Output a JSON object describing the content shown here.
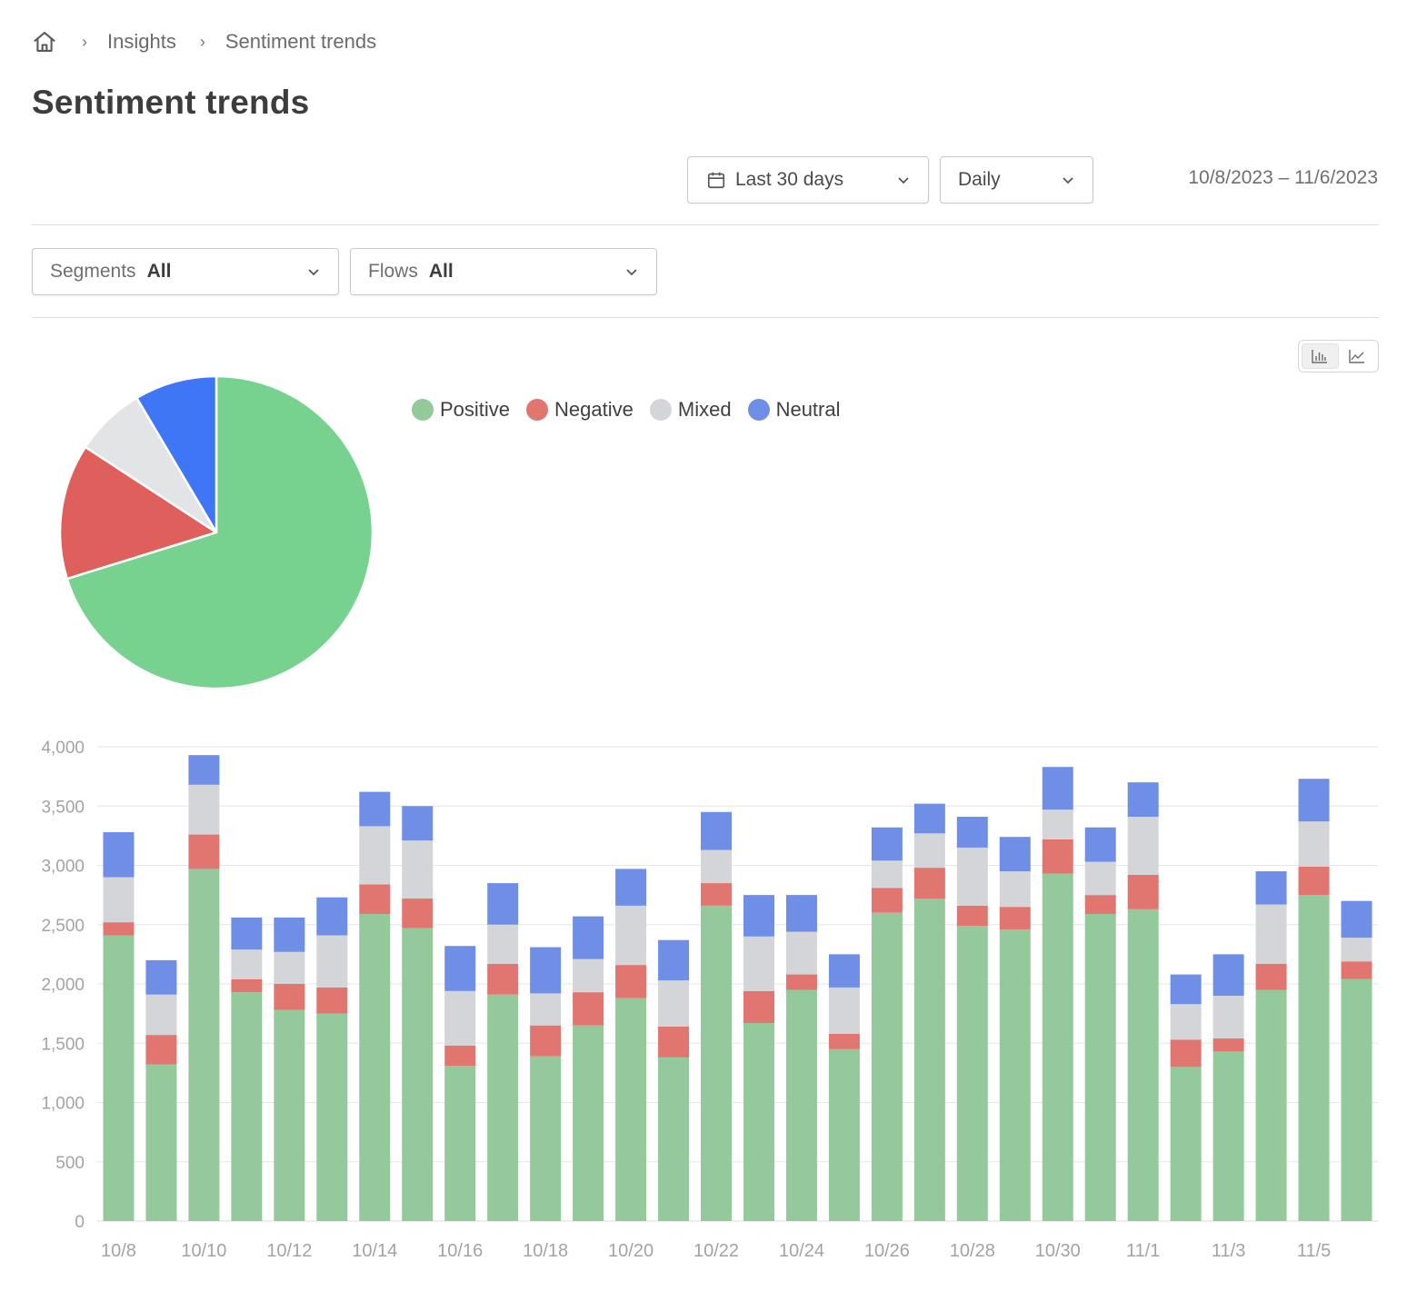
{
  "breadcrumb": {
    "home_icon": "home-icon",
    "items": [
      "Insights",
      "Sentiment trends"
    ]
  },
  "page_title": "Sentiment trends",
  "controls": {
    "period": {
      "icon": "calendar-icon",
      "value": "Last 30 days"
    },
    "granularity": {
      "value": "Daily"
    },
    "date_range": "10/8/2023 – 11/6/2023"
  },
  "filters": {
    "segments": {
      "label": "Segments",
      "value": "All"
    },
    "flows": {
      "label": "Flows",
      "value": "All"
    }
  },
  "view_toggle": {
    "options": [
      "bar-chart-icon",
      "line-chart-icon"
    ],
    "active": "bar-chart-icon"
  },
  "colors": {
    "positive": "#78d28f",
    "negative": "#de5f5b",
    "mixed": "#e2e4e6",
    "neutral": "#3e76f5",
    "bar_positive": "#93c99b",
    "bar_negative": "#e0766f",
    "bar_mixed": "#d3d5d8",
    "bar_neutral": "#6f8fe6"
  },
  "legend": [
    "Positive",
    "Negative",
    "Mixed",
    "Neutral"
  ],
  "chart_data": [
    {
      "type": "pie",
      "title": "",
      "labels": [
        "Positive",
        "Negative",
        "Mixed",
        "Neutral"
      ],
      "values": [
        70.2,
        14.0,
        7.3,
        8.5
      ]
    },
    {
      "type": "bar",
      "stacked": true,
      "title": "",
      "xlabel": "",
      "ylabel": "",
      "ylim": [
        0,
        4000
      ],
      "yticks": [
        "0",
        "500",
        "1,000",
        "1,500",
        "2,000",
        "2,500",
        "3,000",
        "3,500",
        "4,000"
      ],
      "ytick_values": [
        0,
        500,
        1000,
        1500,
        2000,
        2500,
        3000,
        3500,
        4000
      ],
      "categories": [
        "10/8",
        "10/9",
        "10/10",
        "10/11",
        "10/12",
        "10/13",
        "10/14",
        "10/15",
        "10/16",
        "10/17",
        "10/18",
        "10/19",
        "10/20",
        "10/21",
        "10/22",
        "10/23",
        "10/24",
        "10/25",
        "10/26",
        "10/27",
        "10/28",
        "10/29",
        "10/30",
        "10/31",
        "11/1",
        "11/2",
        "11/3",
        "11/4",
        "11/5",
        "11/6"
      ],
      "xtick_labels": [
        "10/8",
        "10/10",
        "10/12",
        "10/14",
        "10/16",
        "10/18",
        "10/20",
        "10/22",
        "10/24",
        "10/26",
        "10/28",
        "10/30",
        "11/1",
        "11/3",
        "11/5"
      ],
      "series": [
        {
          "name": "Positive",
          "values": [
            2410,
            1320,
            2970,
            1930,
            1780,
            1750,
            2590,
            2470,
            1310,
            1910,
            1390,
            1650,
            1880,
            1380,
            2660,
            1670,
            1950,
            1450,
            2600,
            2720,
            2490,
            2460,
            2930,
            2590,
            2630,
            1300,
            1430,
            1950,
            2750,
            2040
          ]
        },
        {
          "name": "Negative",
          "values": [
            110,
            250,
            290,
            110,
            220,
            220,
            250,
            250,
            170,
            260,
            260,
            280,
            280,
            260,
            190,
            270,
            130,
            130,
            210,
            260,
            170,
            190,
            290,
            160,
            290,
            230,
            110,
            220,
            240,
            150
          ]
        },
        {
          "name": "Mixed",
          "values": [
            380,
            340,
            420,
            250,
            270,
            440,
            490,
            490,
            460,
            330,
            270,
            280,
            500,
            390,
            280,
            460,
            360,
            390,
            230,
            290,
            490,
            300,
            250,
            280,
            490,
            300,
            360,
            500,
            380,
            200
          ]
        },
        {
          "name": "Neutral",
          "values": [
            380,
            290,
            250,
            270,
            290,
            320,
            290,
            290,
            380,
            350,
            390,
            360,
            310,
            340,
            320,
            350,
            310,
            280,
            280,
            250,
            260,
            290,
            360,
            290,
            290,
            250,
            350,
            280,
            360,
            310
          ]
        }
      ]
    }
  ]
}
